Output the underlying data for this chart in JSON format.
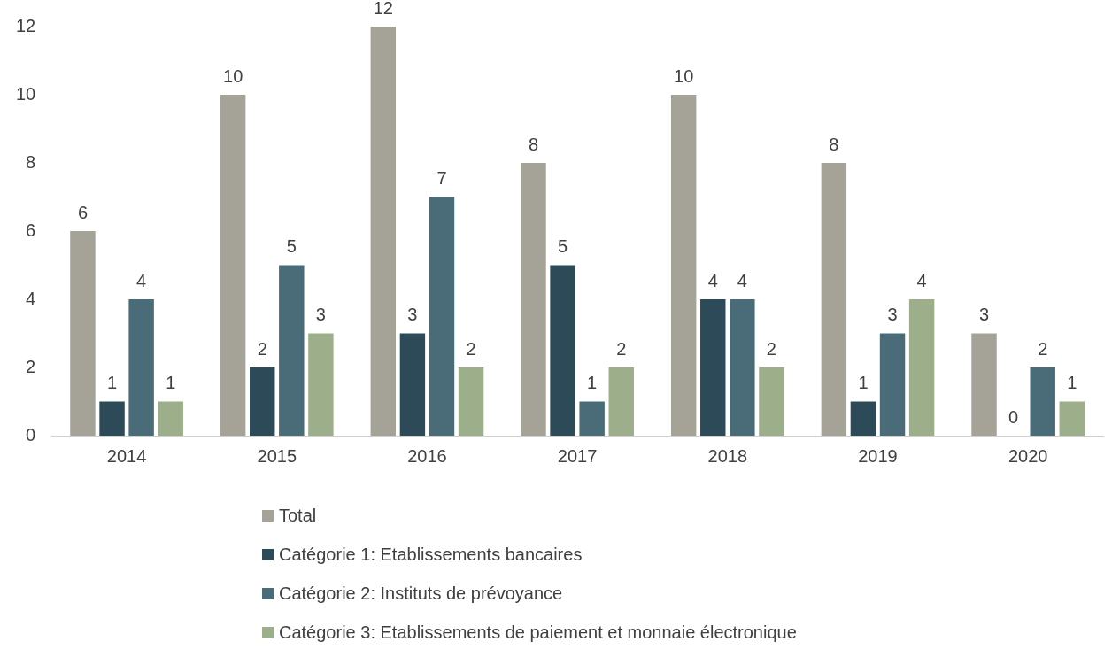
{
  "chart_data": {
    "type": "bar",
    "categories": [
      "2014",
      "2015",
      "2016",
      "2017",
      "2018",
      "2019",
      "2020"
    ],
    "series": [
      {
        "name": "Total",
        "color": "#a5a397",
        "values": [
          6,
          10,
          12,
          8,
          10,
          8,
          3
        ]
      },
      {
        "name": "Catégorie 1: Etablissements bancaires",
        "color": "#2d4a58",
        "values": [
          1,
          2,
          3,
          5,
          4,
          1,
          0
        ]
      },
      {
        "name": "Catégorie 2: Instituts de prévoyance",
        "color": "#4a6c78",
        "values": [
          4,
          5,
          7,
          1,
          4,
          3,
          2
        ]
      },
      {
        "name": "Catégorie 3: Etablissements de paiement et monnaie électronique",
        "color": "#9caf8a",
        "values": [
          1,
          3,
          2,
          2,
          2,
          4,
          1
        ]
      }
    ],
    "ylim": [
      0,
      12
    ],
    "yticks": [
      0,
      2,
      4,
      6,
      8,
      10,
      12
    ],
    "grid": false,
    "legend": "bottom",
    "data_labels": true
  }
}
